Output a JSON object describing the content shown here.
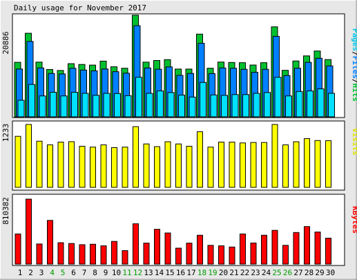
{
  "title": "Daily usage for November 2017",
  "colors": {
    "background": "#e7e7e7",
    "plot": "#ffffff",
    "hits": "#00c030",
    "files": "#0080ff",
    "pages": "#00e0ff",
    "visits": "#ffff00",
    "kbytes": "#ff0000",
    "weekday_label": "#000000",
    "weekend_label": "#00a000",
    "outline": "#000000"
  },
  "days": [
    "1",
    "2",
    "3",
    "4",
    "5",
    "6",
    "7",
    "8",
    "9",
    "10",
    "11",
    "12",
    "13",
    "14",
    "15",
    "16",
    "17",
    "18",
    "19",
    "20",
    "21",
    "22",
    "23",
    "24",
    "25",
    "26",
    "27",
    "28",
    "29",
    "30"
  ],
  "weekend_days": [
    "4",
    "5",
    "11",
    "12",
    "18",
    "19",
    "25",
    "26"
  ],
  "chart_data": [
    {
      "type": "bar",
      "panel": "hits-files-pages",
      "legend": [
        "Pages",
        "Files",
        "Hits"
      ],
      "ymax_label": "20886",
      "ylim": [
        0,
        20886
      ],
      "grid": false,
      "series": [
        {
          "name": "Hits",
          "values": [
            11210,
            17180,
            11250,
            9730,
            9530,
            10930,
            10770,
            10640,
            11450,
            10290,
            9990,
            20886,
            11240,
            11580,
            11760,
            9820,
            9820,
            17000,
            9990,
            11260,
            11180,
            11130,
            10650,
            11130,
            18500,
            9560,
            11480,
            12530,
            13530,
            11770
          ]
        },
        {
          "name": "Files",
          "values": [
            9830,
            15500,
            10050,
            8920,
            8820,
            9990,
            9610,
            9450,
            9830,
            9280,
            8970,
            18740,
            10050,
            9790,
            10260,
            8530,
            8920,
            15120,
            8900,
            10050,
            9990,
            9770,
            9150,
            9770,
            16540,
            8490,
            9990,
            11200,
            12040,
            10470
          ]
        },
        {
          "name": "Pages",
          "values": [
            3410,
            6650,
            4300,
            5050,
            4300,
            5050,
            4830,
            4420,
            4830,
            4790,
            4350,
            8130,
            4830,
            5330,
            5000,
            4470,
            4070,
            7070,
            4500,
            4410,
            4580,
            4580,
            4830,
            5000,
            8130,
            4300,
            5210,
            5330,
            5750,
            4830
          ]
        }
      ]
    },
    {
      "type": "bar",
      "panel": "visits",
      "legend": [
        "Visits"
      ],
      "ymax_label": "1233",
      "ylim": [
        0,
        1233
      ],
      "grid": false,
      "series": [
        {
          "name": "Visits",
          "values": [
            1000,
            1233,
            905,
            833,
            887,
            896,
            806,
            789,
            833,
            779,
            789,
            1190,
            851,
            798,
            894,
            851,
            806,
            1090,
            789,
            887,
            887,
            871,
            880,
            880,
            1233,
            833,
            894,
            955,
            918,
            915
          ]
        }
      ]
    },
    {
      "type": "bar",
      "panel": "kbytes",
      "legend": [
        "KBytes"
      ],
      "ymax_label": "810382",
      "ylim": [
        0,
        810382
      ],
      "grid": false,
      "series": [
        {
          "name": "KBytes",
          "values": [
            376000,
            810382,
            251000,
            545000,
            267000,
            257000,
            242000,
            248000,
            228000,
            283000,
            168000,
            503000,
            262000,
            434000,
            388000,
            199000,
            262000,
            360000,
            234000,
            228000,
            213000,
            376000,
            263000,
            360000,
            421000,
            234000,
            394000,
            468000,
            400000,
            324000
          ]
        }
      ]
    }
  ]
}
